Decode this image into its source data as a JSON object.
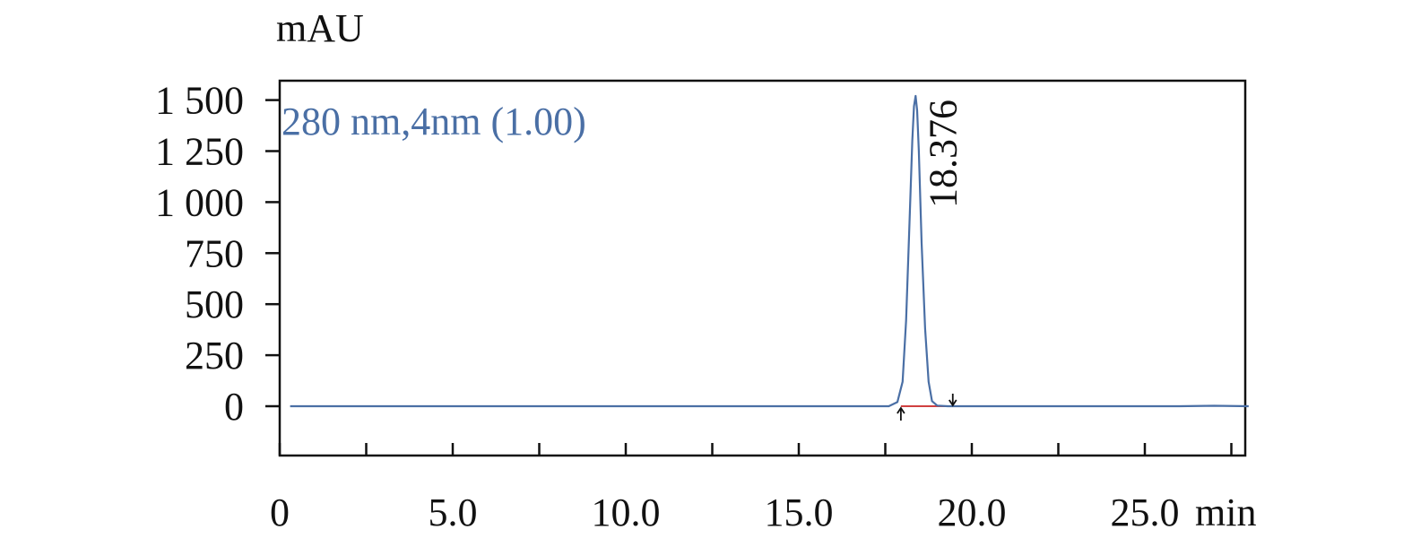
{
  "chart_data": {
    "type": "line",
    "ylabel": "mAU",
    "xunit": "min",
    "xlim": [
      0,
      28
    ],
    "ylim": [
      -250,
      1600
    ],
    "yticks": [
      0,
      250,
      500,
      750,
      1000,
      1250,
      1500
    ],
    "ytick_labels": [
      "0",
      "250",
      "500",
      "750",
      "1 000",
      "1 250",
      "1 500"
    ],
    "xticks": [
      0,
      5,
      10,
      15,
      20,
      25
    ],
    "xtick_labels": [
      "0",
      "5.0",
      "10.0",
      "15.0",
      "20.0",
      "25.0"
    ],
    "xminor_ticks": [
      2.5,
      7.5,
      12.5,
      17.5,
      22.5,
      27.5
    ],
    "grid": false,
    "legend_position": "top-left",
    "series": [
      {
        "name": "280 nm,4nm (1.00)",
        "color": "#4a6fa5",
        "x": [
          0.3,
          6.4,
          17.6,
          17.85,
          18.0,
          18.1,
          18.2,
          18.28,
          18.33,
          18.376,
          18.42,
          18.47,
          18.55,
          18.65,
          18.75,
          18.85,
          19.0,
          19.3,
          26.0,
          27.0,
          28.0
        ],
        "y": [
          0,
          0,
          0,
          20,
          120,
          420,
          900,
          1300,
          1470,
          1520,
          1450,
          1250,
          800,
          380,
          120,
          25,
          3,
          0,
          0,
          2,
          0
        ]
      }
    ],
    "baseline": {
      "color": "#d04040",
      "x": [
        17.95,
        19.45
      ],
      "y": [
        0,
        0
      ]
    },
    "peak_markers": [
      {
        "x": 17.95,
        "direction": "up"
      },
      {
        "x": 19.45,
        "direction": "down"
      }
    ],
    "annotations": [
      {
        "text": "18.376",
        "x": 18.376,
        "y": 1520,
        "rotation": -90
      }
    ]
  }
}
